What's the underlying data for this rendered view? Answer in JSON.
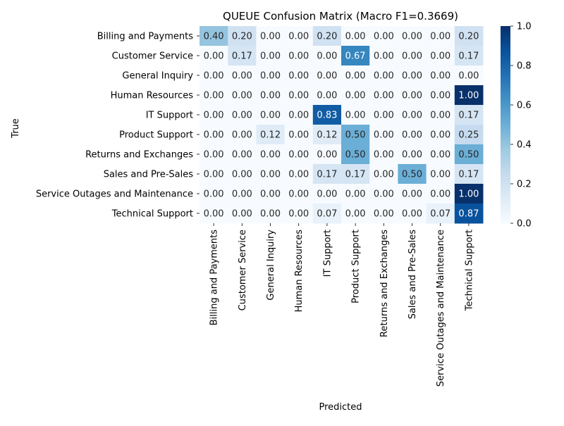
{
  "chart_data": {
    "type": "heatmap",
    "title": "QUEUE Confusion Matrix (Macro F1=0.3669)",
    "xlabel": "Predicted",
    "ylabel": "True",
    "x_categories": [
      "Billing and Payments",
      "Customer Service",
      "General Inquiry",
      "Human Resources",
      "IT Support",
      "Product Support",
      "Returns and Exchanges",
      "Sales and Pre-Sales",
      "Service Outages and Maintenance",
      "Technical Support"
    ],
    "y_categories": [
      "Billing and Payments",
      "Customer Service",
      "General Inquiry",
      "Human Resources",
      "IT Support",
      "Product Support",
      "Returns and Exchanges",
      "Sales and Pre-Sales",
      "Service Outages and Maintenance",
      "Technical Support"
    ],
    "values": [
      [
        0.4,
        0.2,
        0.0,
        0.0,
        0.2,
        0.0,
        0.0,
        0.0,
        0.0,
        0.2
      ],
      [
        0.0,
        0.17,
        0.0,
        0.0,
        0.0,
        0.67,
        0.0,
        0.0,
        0.0,
        0.17
      ],
      [
        0.0,
        0.0,
        0.0,
        0.0,
        0.0,
        0.0,
        0.0,
        0.0,
        0.0,
        0.0
      ],
      [
        0.0,
        0.0,
        0.0,
        0.0,
        0.0,
        0.0,
        0.0,
        0.0,
        0.0,
        1.0
      ],
      [
        0.0,
        0.0,
        0.0,
        0.0,
        0.83,
        0.0,
        0.0,
        0.0,
        0.0,
        0.17
      ],
      [
        0.0,
        0.0,
        0.12,
        0.0,
        0.12,
        0.5,
        0.0,
        0.0,
        0.0,
        0.25
      ],
      [
        0.0,
        0.0,
        0.0,
        0.0,
        0.0,
        0.5,
        0.0,
        0.0,
        0.0,
        0.5
      ],
      [
        0.0,
        0.0,
        0.0,
        0.0,
        0.17,
        0.17,
        0.0,
        0.5,
        0.0,
        0.17
      ],
      [
        0.0,
        0.0,
        0.0,
        0.0,
        0.0,
        0.0,
        0.0,
        0.0,
        0.0,
        1.0
      ],
      [
        0.0,
        0.0,
        0.0,
        0.0,
        0.07,
        0.0,
        0.0,
        0.0,
        0.07,
        0.87
      ]
    ],
    "value_format": "0.00",
    "colormap": "Blues",
    "colormap_stops": [
      "#f7fbff",
      "#deebf7",
      "#c6dbef",
      "#9ecae1",
      "#6baed6",
      "#4292c6",
      "#2171b5",
      "#08519c",
      "#08306b"
    ],
    "colorbar": {
      "range": [
        0.0,
        1.0
      ],
      "ticks": [
        "0.0",
        "0.2",
        "0.4",
        "0.6",
        "0.8",
        "1.0"
      ]
    },
    "grid": false,
    "legend": "colorbar-right"
  }
}
